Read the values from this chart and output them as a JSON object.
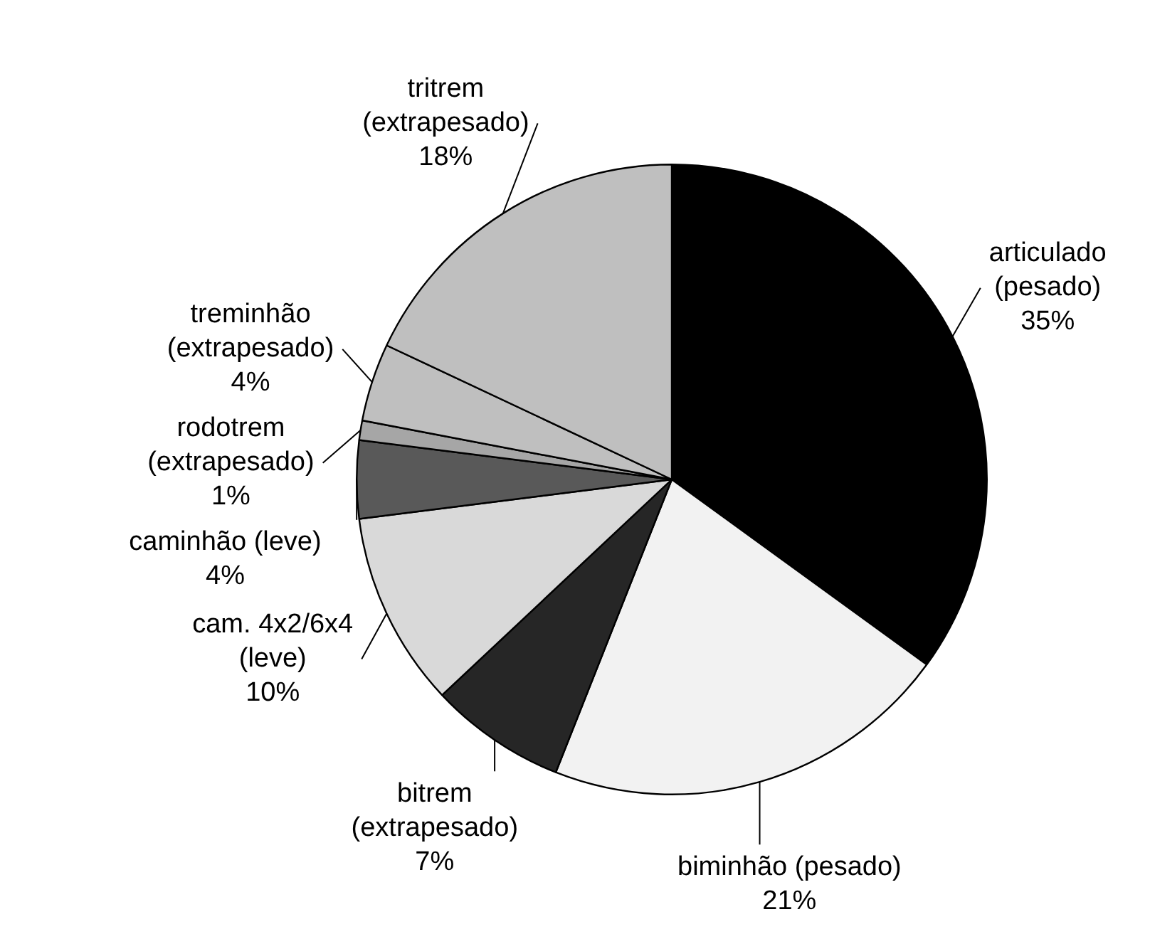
{
  "chart_data": {
    "type": "pie",
    "categories": [
      "articulado (pesado)",
      "biminhão (pesado)",
      "bitrem (extrapesado)",
      "cam. 4x2/6x4 (leve)",
      "caminhão (leve)",
      "rodotrem (extrapesado)",
      "treminhão (extrapesado)",
      "tritrem (extrapesado)"
    ],
    "values": [
      35,
      21,
      7,
      10,
      4,
      1,
      4,
      18
    ],
    "colors": [
      "#000000",
      "#f2f2f2",
      "#262626",
      "#d9d9d9",
      "#595959",
      "#a6a6a6",
      "#bfbfbf",
      "#bfbfbf"
    ],
    "value_labels": [
      "35%",
      "21%",
      "7%",
      "10%",
      "4%",
      "1%",
      "4%",
      "18%"
    ],
    "legend": false
  }
}
